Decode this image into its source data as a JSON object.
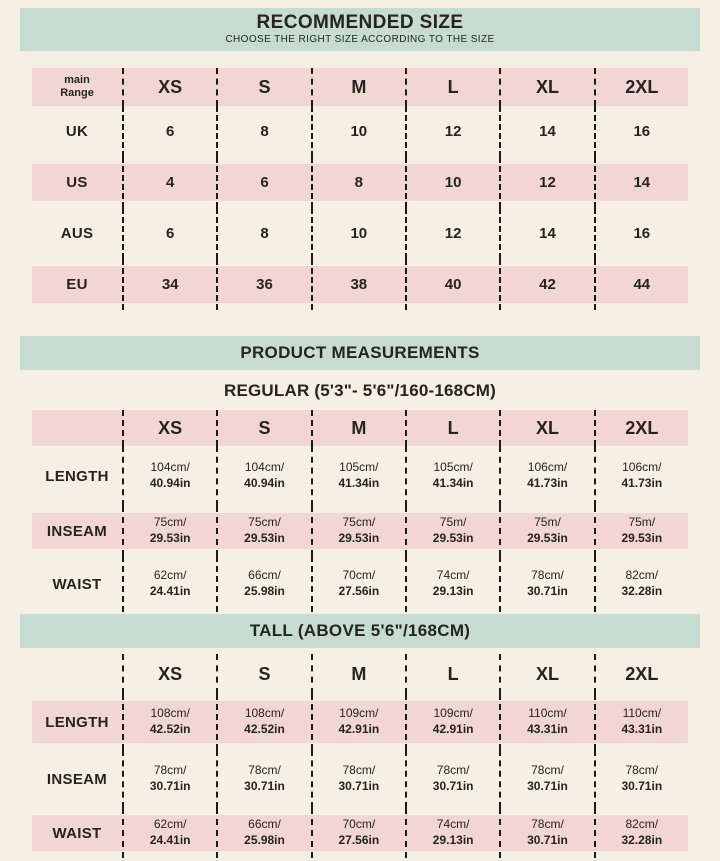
{
  "colors": {
    "background": "#f6efe3",
    "banner_teal": "#c7dcd1",
    "stripe_pink": "#f1d6d4",
    "text": "#242420"
  },
  "recommended": {
    "title": "RECOMMENDED SIZE",
    "subtitle": "CHOOSE THE RIGHT SIZE ACCORDING TO THE SIZE",
    "corner": {
      "line1": "main",
      "line2": "Range"
    },
    "columns": [
      "XS",
      "S",
      "M",
      "L",
      "XL",
      "2XL"
    ],
    "rows": [
      {
        "label": "UK",
        "values": [
          "6",
          "8",
          "10",
          "12",
          "14",
          "16"
        ]
      },
      {
        "label": "US",
        "values": [
          "4",
          "6",
          "8",
          "10",
          "12",
          "14"
        ]
      },
      {
        "label": "AUS",
        "values": [
          "6",
          "8",
          "10",
          "12",
          "14",
          "16"
        ]
      },
      {
        "label": "EU",
        "values": [
          "34",
          "36",
          "38",
          "40",
          "42",
          "44"
        ]
      }
    ]
  },
  "measurements": {
    "title": "PRODUCT MEASUREMENTS",
    "regular": {
      "heading": "REGULAR (5'3\"- 5'6\"/160-168CM)",
      "columns": [
        "XS",
        "S",
        "M",
        "L",
        "XL",
        "2XL"
      ],
      "rows": [
        {
          "label": "LENGTH",
          "values": [
            [
              "104cm/",
              "40.94in"
            ],
            [
              "104cm/",
              "40.94in"
            ],
            [
              "105cm/",
              "41.34in"
            ],
            [
              "105cm/",
              "41.34in"
            ],
            [
              "106cm/",
              "41.73in"
            ],
            [
              "106cm/",
              "41.73in"
            ]
          ]
        },
        {
          "label": "INSEAM",
          "values": [
            [
              "75cm/",
              "29.53in"
            ],
            [
              "75cm/",
              "29.53in"
            ],
            [
              "75cm/",
              "29.53in"
            ],
            [
              "75m/",
              "29.53in"
            ],
            [
              "75m/",
              "29.53in"
            ],
            [
              "75m/",
              "29.53in"
            ]
          ]
        },
        {
          "label": "WAIST",
          "values": [
            [
              "62cm/",
              "24.41in"
            ],
            [
              "66cm/",
              "25.98in"
            ],
            [
              "70cm/",
              "27.56in"
            ],
            [
              "74cm/",
              "29.13in"
            ],
            [
              "78cm/",
              "30.71in"
            ],
            [
              "82cm/",
              "32.28in"
            ]
          ]
        }
      ]
    },
    "tall": {
      "heading": "TALL (ABOVE 5'6\"/168CM)",
      "columns": [
        "XS",
        "S",
        "M",
        "L",
        "XL",
        "2XL"
      ],
      "rows": [
        {
          "label": "LENGTH",
          "values": [
            [
              "108cm/",
              "42.52in"
            ],
            [
              "108cm/",
              "42.52in"
            ],
            [
              "109cm/",
              "42.91in"
            ],
            [
              "109cm/",
              "42.91in"
            ],
            [
              "110cm/",
              "43.31in"
            ],
            [
              "110cm/",
              "43.31in"
            ]
          ]
        },
        {
          "label": "INSEAM",
          "values": [
            [
              "78cm/",
              "30.71in"
            ],
            [
              "78cm/",
              "30.71in"
            ],
            [
              "78cm/",
              "30.71in"
            ],
            [
              "78cm/",
              "30.71in"
            ],
            [
              "78cm/",
              "30.71in"
            ],
            [
              "78cm/",
              "30.71in"
            ]
          ]
        },
        {
          "label": "WAIST",
          "values": [
            [
              "62cm/",
              "24.41in"
            ],
            [
              "66cm/",
              "25.98in"
            ],
            [
              "70cm/",
              "27.56in"
            ],
            [
              "74cm/",
              "29.13in"
            ],
            [
              "78cm/",
              "30.71in"
            ],
            [
              "82cm/",
              "32.28in"
            ]
          ]
        }
      ]
    }
  }
}
